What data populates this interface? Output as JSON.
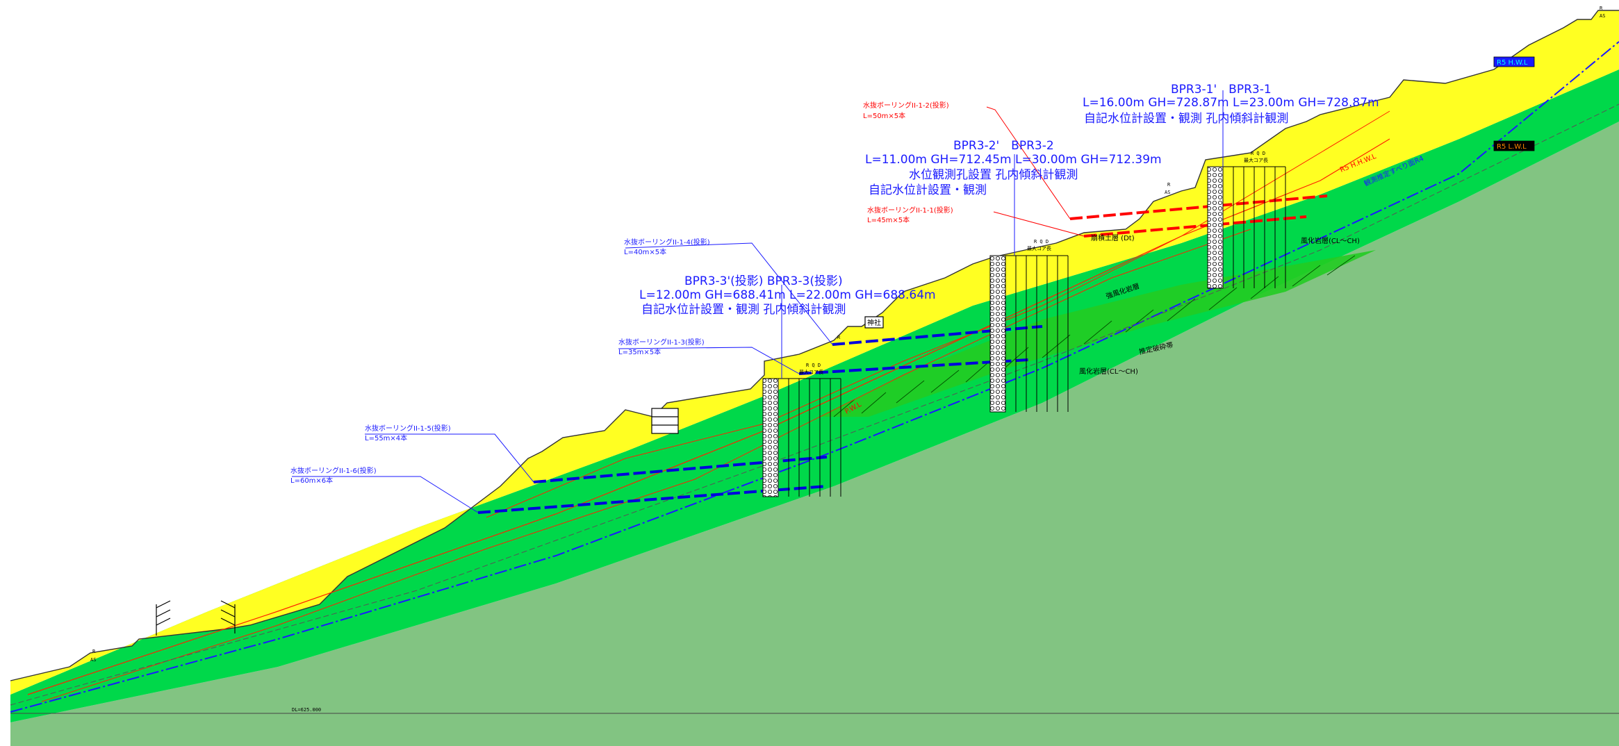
{
  "colors": {
    "surface": "#ffff22",
    "weathered": "#00d84a",
    "bedrock": "#82c482",
    "fracture": "#22cc22",
    "blue": "#1a1aff",
    "red": "#ff0000"
  },
  "boreholes": [
    {
      "title": "BPR3-1'　BPR3-1",
      "line1": "L=16.00m GH=728.87m L=23.00m GH=728.87m",
      "line2": "自記水位計設置・観測 孔内傾斜計観測",
      "line3": ""
    },
    {
      "title": "BPR3-2'　BPR3-2",
      "line1": "L=11.00m GH=712.45m L=30.00m GH=712.39m",
      "line2": "水位観測孔設置 孔内傾斜計観測",
      "line3": "自記水位計設置・観測"
    },
    {
      "title": "BPR3-3'(投影) BPR3-3(投影)",
      "line1": "L=12.00m GH=688.41m L=22.00m GH=688.64m",
      "line2": "自記水位計設置・観測 孔内傾斜計観測",
      "line3": ""
    }
  ],
  "drains": [
    {
      "name": "水抜ボーリングII-1-2(投影)",
      "spec": "L=50m×5本",
      "color": "red"
    },
    {
      "name": "水抜ボーリングII-1-1(投影)",
      "spec": "L=45m×5本",
      "color": "red"
    },
    {
      "name": "水抜ボーリングII-1-4(投影)",
      "spec": "L=40m×5本",
      "color": "blue"
    },
    {
      "name": "水抜ボーリングII-1-3(投影)",
      "spec": "L=35m×5本",
      "color": "blue"
    },
    {
      "name": "水抜ボーリングII-1-5(投影)",
      "spec": "L=55m×4本",
      "color": "blue"
    },
    {
      "name": "水抜ボーリングII-1-6(投影)",
      "spec": "L=60m×6本",
      "color": "blue"
    }
  ],
  "layers": {
    "talus": "崩積土層 (Dt)",
    "weathered_upper": "風化岩層(CL〜CH)",
    "weathered_lower": "風化岩層(CL〜CH)",
    "strong_weathered": "強風化岩層",
    "fracture_zone": "推定破砕帯"
  },
  "water_levels": {
    "hhwl": "R5 H.W.L",
    "lwl": "R5 L.W.L",
    "hhwl_label": "R5 H.H.W.L",
    "pwl": "P.W.L",
    "slip": "R5 H.W.L",
    "slip2": "観測推定すべり面R4"
  },
  "marks": {
    "shrine": "神社",
    "rqd": "R Q D",
    "core_len": "最大コア長",
    "r": "R",
    "as": "AS"
  },
  "datum": "DL=625.000",
  "corner": "R\nAS"
}
